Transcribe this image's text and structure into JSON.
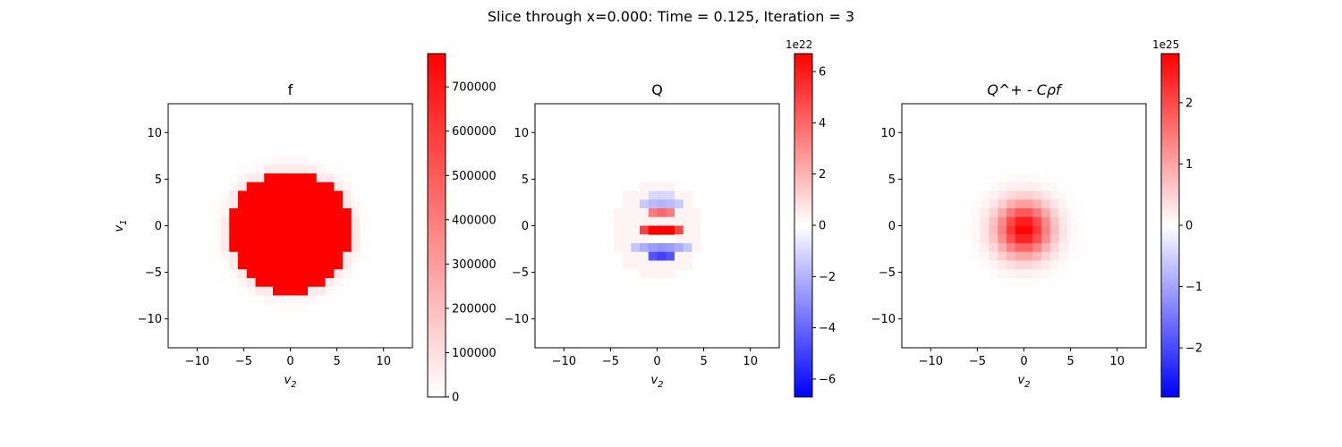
{
  "suptitle": "Slice through x=0.000: Time = 0.125, Iteration = 3",
  "chart_data": [
    {
      "type": "heatmap",
      "title": "f",
      "xlabel": "v_2",
      "ylabel": "v_1",
      "xlim": [
        -13.1,
        13.1
      ],
      "ylim": [
        -13.1,
        13.1
      ],
      "xticks": [
        -10,
        -5,
        0,
        5,
        10
      ],
      "yticks": [
        -10,
        -5,
        0,
        5,
        10
      ],
      "grid_n": 28,
      "cmap": "white-red",
      "colors": {
        "low": "#ffffff",
        "high": "#ff0000"
      },
      "clim": [
        0,
        775000
      ],
      "colorbar_ticks": [
        0,
        100000,
        200000,
        300000,
        400000,
        500000,
        600000,
        700000
      ],
      "colorbar_tick_labels": [
        "0",
        "100000",
        "200000",
        "300000",
        "400000",
        "500000",
        "600000",
        "700000"
      ],
      "colorbar_offset": "",
      "field": {
        "kind": "disk",
        "peak": 775000,
        "center": [
          0,
          -0.6
        ],
        "radius": 6.6,
        "fringe": 1.9,
        "fringe_levels": [
          60000,
          25000,
          8000
        ]
      }
    },
    {
      "type": "heatmap",
      "title": "Q",
      "xlabel": "v_2",
      "ylabel": "",
      "xlim": [
        -13.1,
        13.1
      ],
      "ylim": [
        -13.1,
        13.1
      ],
      "xticks": [
        -10,
        -5,
        0,
        5,
        10
      ],
      "yticks": [
        -10,
        -5,
        0,
        5,
        10
      ],
      "grid_n": 28,
      "cmap": "bwr",
      "colors": {
        "low": "#0000ff",
        "mid": "#ffffff",
        "high": "#ff0000"
      },
      "clim": [
        -6.7e+22,
        6.7e+22
      ],
      "colorbar_ticks": [
        -6e+22,
        -4e+22,
        -2e+22,
        0,
        2e+22,
        4e+22,
        6e+22
      ],
      "colorbar_tick_labels": [
        "−6",
        "−4",
        "−2",
        "0",
        "2",
        "4",
        "6"
      ],
      "colorbar_offset": "1e22",
      "field": {
        "kind": "cells",
        "cells": [
          {
            "v1": 0,
            "v2": -2,
            "value": 5e+22
          },
          {
            "v1": 0,
            "v2": -1,
            "value": 6.7e+22
          },
          {
            "v1": 0,
            "v2": 0,
            "value": 6.7e+22
          },
          {
            "v1": 0,
            "v2": 1,
            "value": 6.7e+22
          },
          {
            "v1": 0,
            "v2": 2,
            "value": 5e+22
          },
          {
            "v1": 2,
            "v2": -1,
            "value": 3.5e+22
          },
          {
            "v1": 2,
            "v2": 0,
            "value": 4e+22
          },
          {
            "v1": 2,
            "v2": 1,
            "value": 3.5e+22
          },
          {
            "v1": -1,
            "v2": 0,
            "value": 0
          },
          {
            "v1": -1,
            "v2": -1,
            "value": 0
          },
          {
            "v1": -1,
            "v2": 1,
            "value": 0
          },
          {
            "v1": -3,
            "v2": -1,
            "value": -4.5e+22
          },
          {
            "v1": -3,
            "v2": 0,
            "value": -5e+22
          },
          {
            "v1": -3,
            "v2": 1,
            "value": -4.5e+22
          },
          {
            "v1": -2,
            "v2": -3,
            "value": -1.5e+22
          },
          {
            "v1": -2,
            "v2": 3,
            "value": -1.5e+22
          },
          {
            "v1": -2,
            "v2": -2,
            "value": -2.2e+22
          },
          {
            "v1": -2,
            "v2": 2,
            "value": -2.2e+22
          },
          {
            "v1": -2,
            "v2": -1,
            "value": -2.6e+22
          },
          {
            "v1": -2,
            "v2": 0,
            "value": -2.8e+22
          },
          {
            "v1": -2,
            "v2": 1,
            "value": -2.6e+22
          },
          {
            "v1": 3,
            "v2": -2,
            "value": -1.4e+22
          },
          {
            "v1": 3,
            "v2": -1,
            "value": -1.8e+22
          },
          {
            "v1": 3,
            "v2": 0,
            "value": -2e+22
          },
          {
            "v1": 3,
            "v2": 1,
            "value": -1.8e+22
          },
          {
            "v1": 3,
            "v2": 2,
            "value": -1.4e+22
          },
          {
            "v1": 4,
            "v2": -1,
            "value": -1e+22
          },
          {
            "v1": 4,
            "v2": 0,
            "value": -1.1e+22
          },
          {
            "v1": 4,
            "v2": 1,
            "value": -1e+22
          }
        ],
        "halo": {
          "center": [
            0,
            -0.5
          ],
          "radius": 5.0,
          "value": 3e+21
        }
      }
    },
    {
      "type": "heatmap",
      "title": "Q^+ - Cρf",
      "xlabel": "v_2",
      "ylabel": "",
      "xlim": [
        -13.1,
        13.1
      ],
      "ylim": [
        -13.1,
        13.1
      ],
      "xticks": [
        -10,
        -5,
        0,
        5,
        10
      ],
      "yticks": [
        -10,
        -5,
        0,
        5,
        10
      ],
      "grid_n": 28,
      "cmap": "bwr",
      "colors": {
        "low": "#0000ff",
        "mid": "#ffffff",
        "high": "#ff0000"
      },
      "clim": [
        -2.8e+25,
        2.8e+25
      ],
      "colorbar_ticks": [
        -2e+25,
        -1e+25,
        0,
        1e+25,
        2e+25
      ],
      "colorbar_tick_labels": [
        "−2",
        "−1",
        "0",
        "1",
        "2"
      ],
      "colorbar_offset": "1e25",
      "field": {
        "kind": "gaussian",
        "peak": 2.8e+25,
        "center": [
          0,
          -0.4
        ],
        "sigma": 2.0
      }
    }
  ]
}
